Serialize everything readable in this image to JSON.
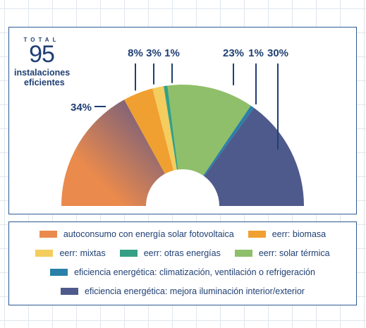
{
  "summary": {
    "total_word": "TOTAL",
    "total_value": "95",
    "subtitle_line1": "instalaciones",
    "subtitle_line2": "eficientes"
  },
  "chart_data": {
    "type": "pie",
    "shape": "semi-donut",
    "categories": [
      "autoconsumo con energía solar fotovoltaica",
      "eerr: biomasa",
      "eerr: mixtas",
      "eerr: otras energías",
      "eerr: solar térmica",
      "eficiencia energética: climatización, ventilación o refrigeración",
      "eficiencia energética: mejora iluminación interior/exterior"
    ],
    "values": [
      34,
      8,
      3,
      1,
      23,
      1,
      30
    ],
    "value_labels": [
      "34%",
      "8%",
      "3%",
      "1%",
      "23%",
      "1%",
      "30%"
    ],
    "colors": [
      "#ea8a4d",
      "#f0a030",
      "#f3cd5e",
      "#35a085",
      "#8fbf6a",
      "#2a80a8",
      "#4f5a8c"
    ],
    "gradient_accent": "#5a5487",
    "legend_position": "bottom"
  }
}
